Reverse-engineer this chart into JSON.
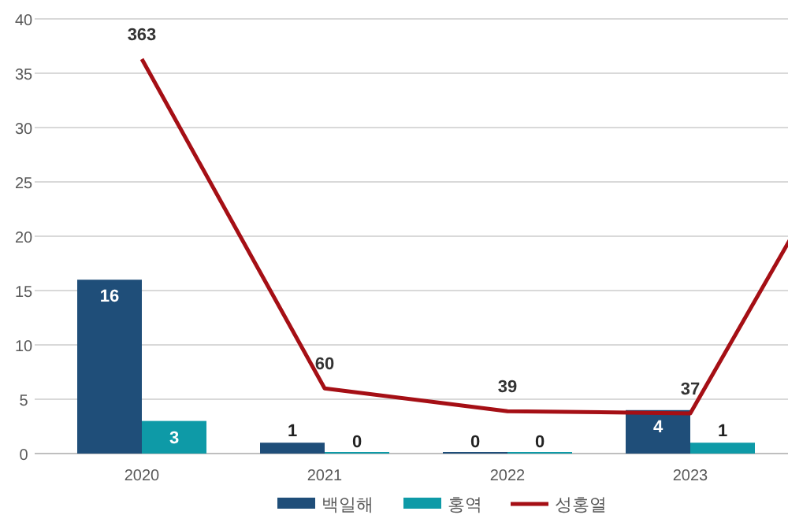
{
  "chart_data": {
    "type": "bar",
    "categories": [
      "2020",
      "2021",
      "2022",
      "2023",
      null
    ],
    "series": [
      {
        "name": "백일해",
        "color": "#1f4e79",
        "values": [
          16,
          1,
          0,
          4,
          null
        ]
      },
      {
        "name": "홍역",
        "color": "#0e9aa7",
        "values": [
          3,
          0,
          0,
          1,
          null
        ]
      },
      {
        "name": "성홍열",
        "type": "line",
        "axis": "y2",
        "color": "#a50f15",
        "values": [
          363,
          60,
          39,
          37,
          330
        ],
        "value_labels": [
          "363",
          "60",
          "39",
          "37",
          null
        ]
      }
    ],
    "data_labels": true,
    "ylim": [
      0,
      40
    ],
    "yticks": [
      0,
      5,
      10,
      15,
      20,
      25,
      30,
      35,
      40
    ],
    "y2lim": [
      0,
      400
    ],
    "grid": "y",
    "legend": "bottom"
  }
}
